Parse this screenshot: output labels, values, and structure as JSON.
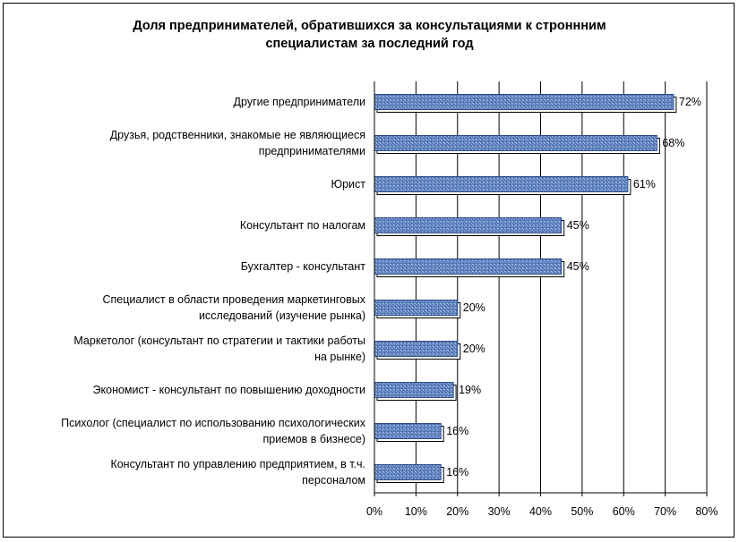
{
  "chart_data": {
    "type": "bar",
    "orientation": "horizontal",
    "title_lines": [
      "Доля предпринимателей, обратившихся за консультациями к строннним",
      "специалистам за последний год"
    ],
    "categories": [
      [
        "Другие предприниматели"
      ],
      [
        "Друзья, родственники, знакомые не являющиеся",
        "предпринимателями"
      ],
      [
        "Юрист"
      ],
      [
        "Консультант по налогам"
      ],
      [
        "Бухгалтер - консультант"
      ],
      [
        "Специалист в области проведения маркетинговых",
        "исследований (изучение рынка)"
      ],
      [
        "Маркетолог (консультант по стратегии и тактики работы",
        "на рынке)"
      ],
      [
        "Экономист - консультант по повышению доходности"
      ],
      [
        "Психолог (специалист по использованию психологических",
        "приемов в бизнесе)"
      ],
      [
        "Консультант по управлению предприятием, в т.ч.",
        "персоналом"
      ]
    ],
    "values": [
      72,
      68,
      61,
      45,
      45,
      20,
      20,
      19,
      16,
      16
    ],
    "data_labels": [
      "72%",
      "68%",
      "61%",
      "45%",
      "45%",
      "20%",
      "20%",
      "19%",
      "16%",
      "16%"
    ],
    "x_ticks": [
      "0%",
      "10%",
      "20%",
      "30%",
      "40%",
      "50%",
      "60%",
      "70%",
      "80%"
    ],
    "xlim": [
      0,
      80
    ],
    "grid": "vertical",
    "bar_color": "#5a7fbd",
    "bar_edge_color": "#000000",
    "gridline_color": "#000000"
  }
}
